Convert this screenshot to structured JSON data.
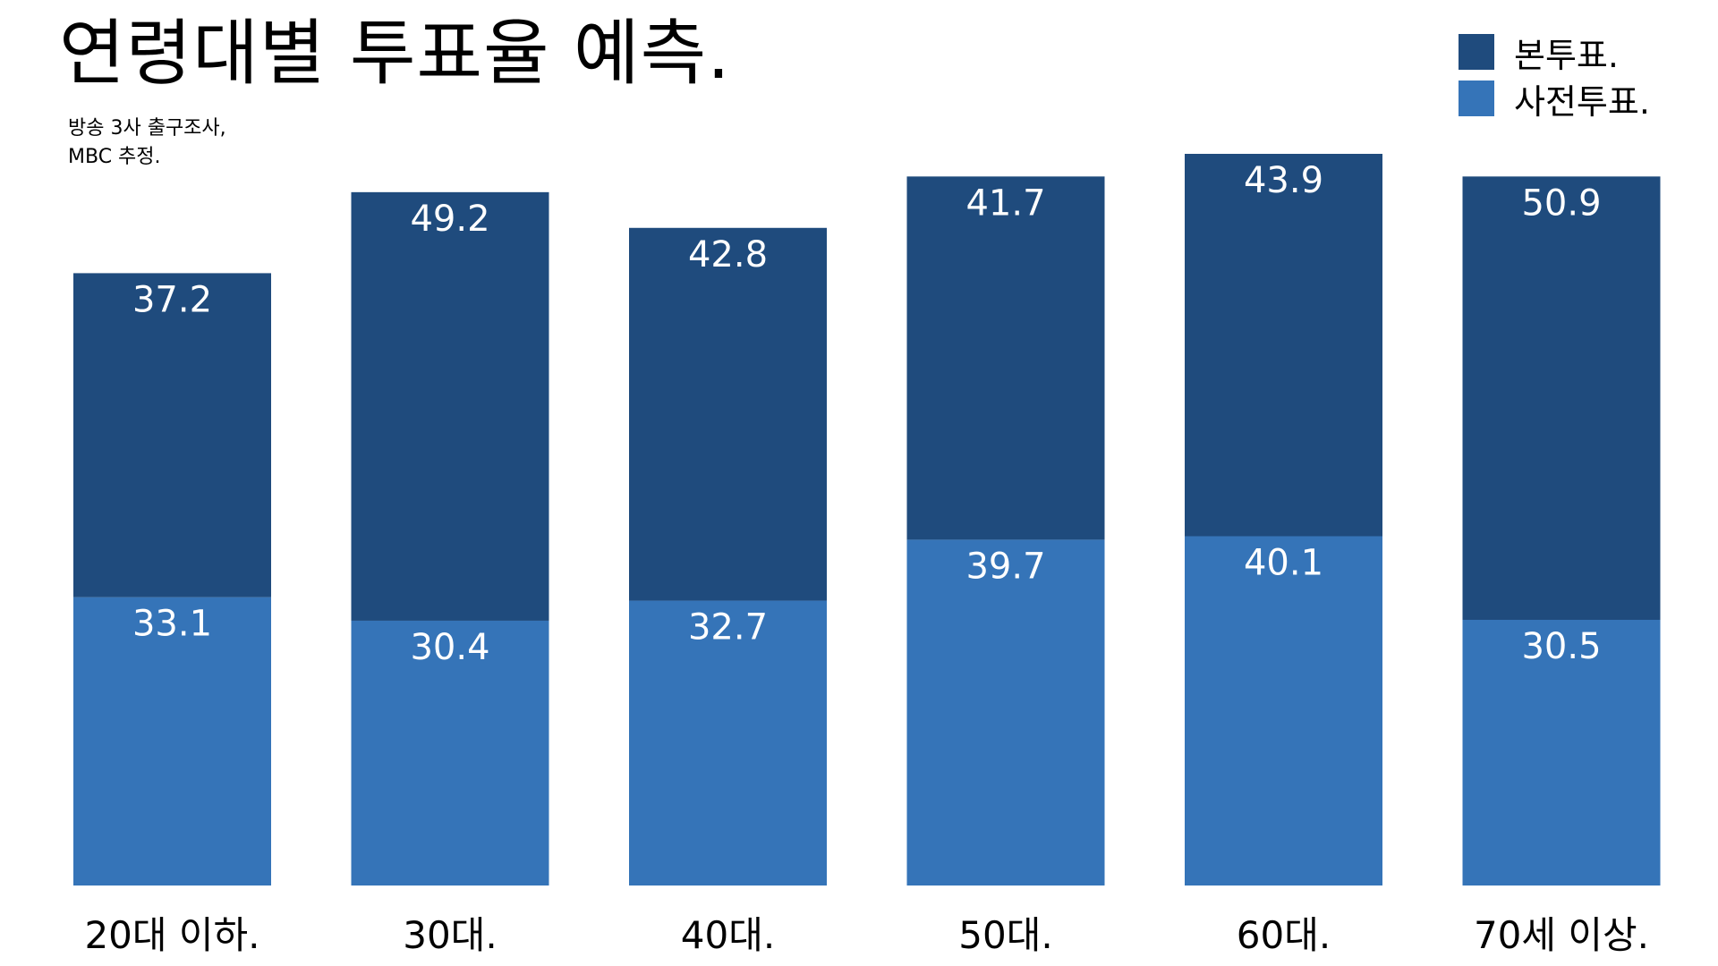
{
  "chart_data": {
    "type": "bar",
    "stacked": true,
    "title": "연령대별 투표율 예측.",
    "subtitle_lines": [
      "방송 3사 출구조사,",
      "MBC 추정."
    ],
    "categories": [
      "20대 이하.",
      "30대.",
      "40대.",
      "50대.",
      "60대.",
      "70세 이상."
    ],
    "series": [
      {
        "name": "사전투표.",
        "color": "#3574b8",
        "values": [
          33.1,
          30.4,
          32.7,
          39.7,
          40.1,
          30.5
        ]
      },
      {
        "name": "본투표.",
        "color": "#1f4b7d",
        "values": [
          37.2,
          49.2,
          42.8,
          41.7,
          43.9,
          50.9
        ]
      }
    ],
    "legend_order": [
      1,
      0
    ],
    "legend_position": "top-right",
    "ylim": [
      0,
      84
    ],
    "grid": false,
    "data_labels": true
  }
}
